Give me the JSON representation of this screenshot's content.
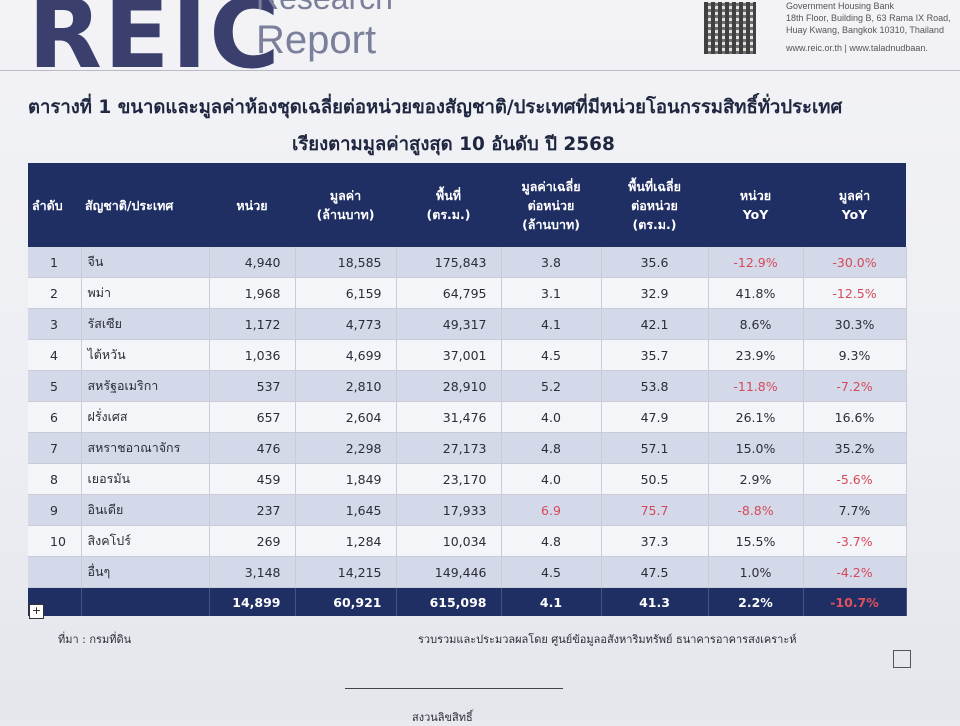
{
  "header": {
    "logo": "REIC",
    "logo_sub_line1": "Research",
    "logo_sub_line2": "Report",
    "bank_name": "Government Housing Bank",
    "bank_address1": "18th Floor, Building B, 63 Rama IX Road,",
    "bank_address2": "Huay Kwang, Bangkok 10310, Thailand",
    "web": "www.reic.or.th | www.taladnudbaan."
  },
  "title": {
    "line1": "ตารางที่ 1 ขนาดและมูลค่าห้องชุดเฉลี่ยต่อหน่วยของสัญชาติ/ประเทศที่มีหน่วยโอนกรรมสิทธิ์ทั่วประเทศ",
    "line2": "เรียงตามมูลค่าสูงสุด 10 อันดับ ปี 2568"
  },
  "table": {
    "headers": [
      "ลำดับ",
      "สัญชาติ/ประเทศ",
      "หน่วย",
      "มูลค่า\n(ล้านบาท)",
      "พื้นที่\n(ตร.ม.)",
      "มูลค่าเฉลี่ย\nต่อหน่วย\n(ล้านบาท)",
      "พื้นที่เฉลี่ย\nต่อหน่วย\n(ตร.ม.)",
      "หน่วย\nYoY",
      "มูลค่า\nYoY"
    ],
    "rows": [
      {
        "rank": "1",
        "country": "จีน",
        "units": "4,940",
        "value": "18,585",
        "area": "175,843",
        "avg_value": "3.8",
        "avg_area": "35.6",
        "units_yoy": "-12.9%",
        "value_yoy": "-30.0%"
      },
      {
        "rank": "2",
        "country": "พม่า",
        "units": "1,968",
        "value": "6,159",
        "area": "64,795",
        "avg_value": "3.1",
        "avg_area": "32.9",
        "units_yoy": "41.8%",
        "value_yoy": "-12.5%"
      },
      {
        "rank": "3",
        "country": "รัสเซีย",
        "units": "1,172",
        "value": "4,773",
        "area": "49,317",
        "avg_value": "4.1",
        "avg_area": "42.1",
        "units_yoy": "8.6%",
        "value_yoy": "30.3%"
      },
      {
        "rank": "4",
        "country": "ไต้หวัน",
        "units": "1,036",
        "value": "4,699",
        "area": "37,001",
        "avg_value": "4.5",
        "avg_area": "35.7",
        "units_yoy": "23.9%",
        "value_yoy": "9.3%"
      },
      {
        "rank": "5",
        "country": "สหรัฐอเมริกา",
        "units": "537",
        "value": "2,810",
        "area": "28,910",
        "avg_value": "5.2",
        "avg_area": "53.8",
        "units_yoy": "-11.8%",
        "value_yoy": "-7.2%"
      },
      {
        "rank": "6",
        "country": "ฝรั่งเศส",
        "units": "657",
        "value": "2,604",
        "area": "31,476",
        "avg_value": "4.0",
        "avg_area": "47.9",
        "units_yoy": "26.1%",
        "value_yoy": "16.6%"
      },
      {
        "rank": "7",
        "country": "สหราชอาณาจักร",
        "units": "476",
        "value": "2,298",
        "area": "27,173",
        "avg_value": "4.8",
        "avg_area": "57.1",
        "units_yoy": "15.0%",
        "value_yoy": "35.2%"
      },
      {
        "rank": "8",
        "country": "เยอรมัน",
        "units": "459",
        "value": "1,849",
        "area": "23,170",
        "avg_value": "4.0",
        "avg_area": "50.5",
        "units_yoy": "2.9%",
        "value_yoy": "-5.6%"
      },
      {
        "rank": "9",
        "country": "อินเดีย",
        "units": "237",
        "value": "1,645",
        "area": "17,933",
        "avg_value": "6.9",
        "avg_area": "75.7",
        "units_yoy": "-8.8%",
        "value_yoy": "7.7%"
      },
      {
        "rank": "10",
        "country": "สิงคโปร์",
        "units": "269",
        "value": "1,284",
        "area": "10,034",
        "avg_value": "4.8",
        "avg_area": "37.3",
        "units_yoy": "15.5%",
        "value_yoy": "-3.7%"
      },
      {
        "rank": "",
        "country": "อื่นๆ",
        "units": "3,148",
        "value": "14,215",
        "area": "149,446",
        "avg_value": "4.5",
        "avg_area": "47.5",
        "units_yoy": "1.0%",
        "value_yoy": "-4.2%"
      }
    ],
    "total": {
      "rank": "",
      "country": "",
      "units": "14,899",
      "value": "60,921",
      "area": "615,098",
      "avg_value": "4.1",
      "avg_area": "41.3",
      "units_yoy": "2.2%",
      "value_yoy": "-10.7%"
    }
  },
  "footer": {
    "source": "ที่มา : กรมที่ดิน",
    "compiled_by": "รวบรวมและประมวลผลโดย ศูนย์ข้อมูลอสังหาริมทรัพย์ ธนาคารอาคารสงเคราะห์",
    "copyright": "สงวนลิขสิทธิ์"
  },
  "colors": {
    "header_bg": "#1f2f63",
    "negative": "#d44a5a",
    "highlight_avg": "#d44a5a"
  }
}
